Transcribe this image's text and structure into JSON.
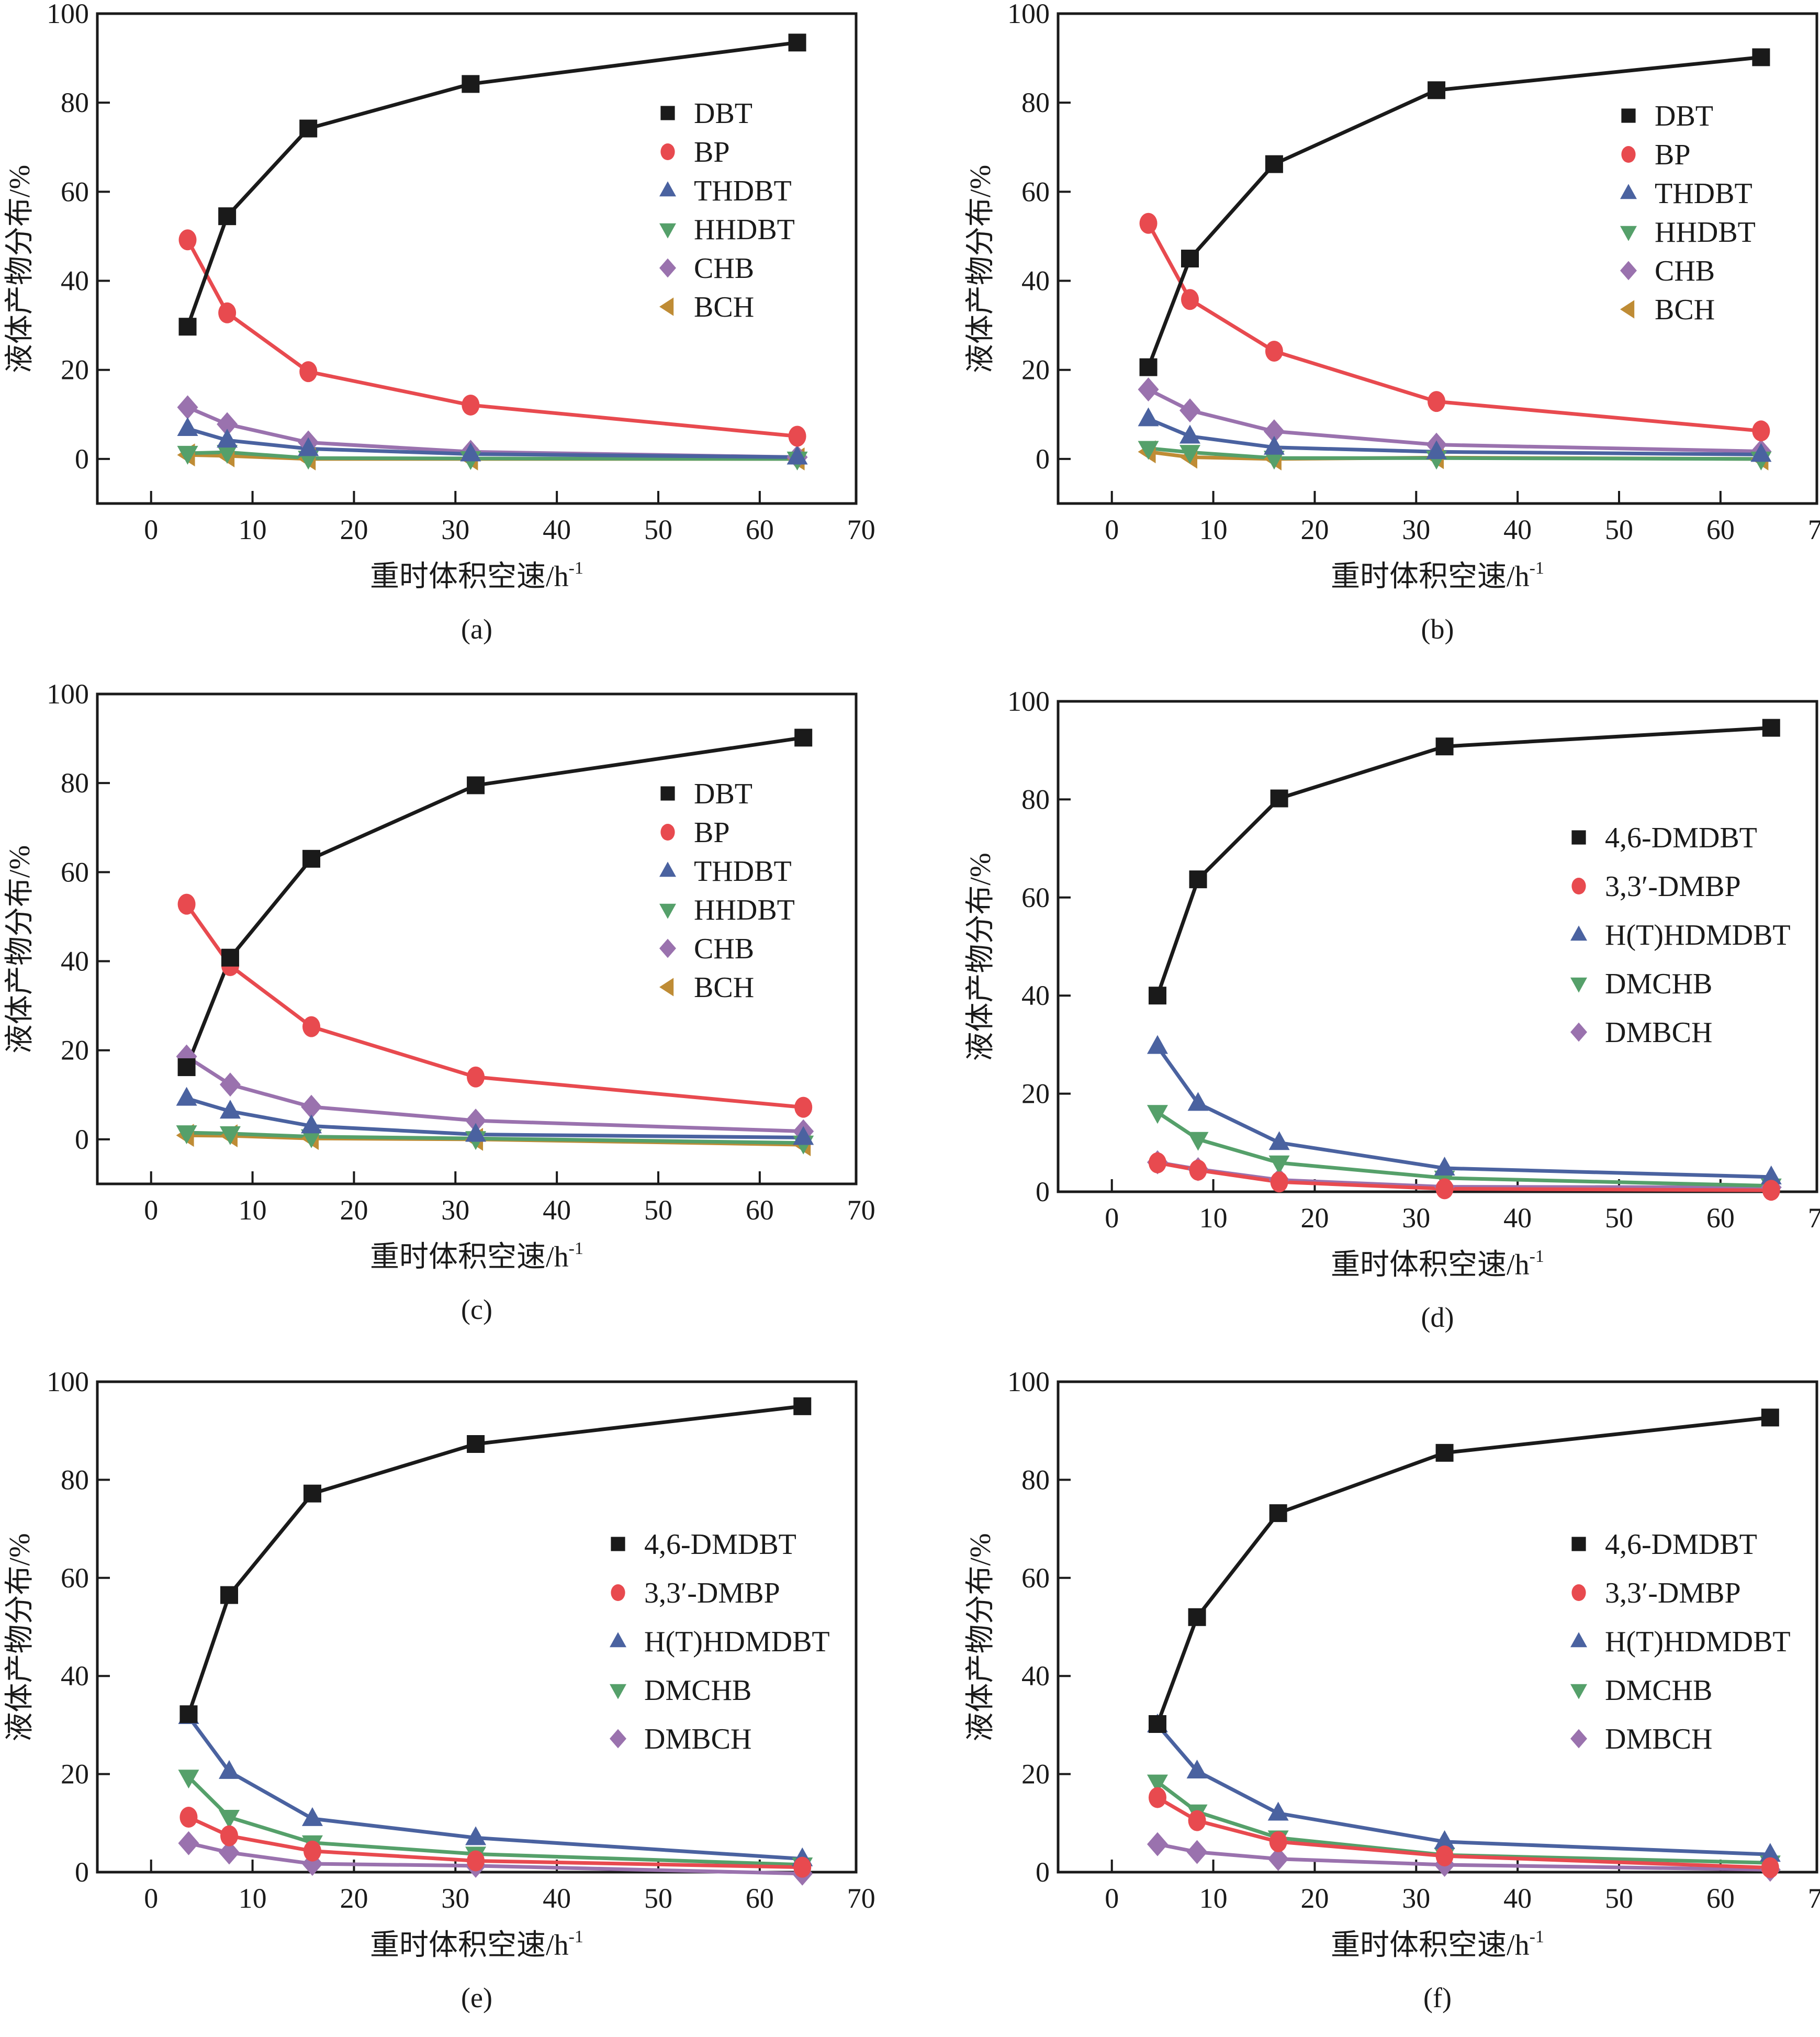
{
  "figure": {
    "panels": [
      "a",
      "b",
      "c",
      "d",
      "e",
      "f"
    ]
  },
  "chart_data": [
    {
      "id": "a",
      "type": "line",
      "panel_label": "(a)",
      "xlabel": "重时体积空速/h",
      "xlabel_sup": "-1",
      "ylabel": "液体产物分布/%",
      "xlim": [
        -5.3,
        69.5
      ],
      "ylim": [
        -10,
        100
      ],
      "xticks": [
        0,
        10,
        20,
        30,
        40,
        50,
        60,
        70
      ],
      "yticks": [
        0,
        20,
        40,
        60,
        80,
        100
      ],
      "legend_position": "right-upper",
      "x": [
        3.6,
        7.5,
        15.5,
        31.5,
        63.7
      ],
      "series": [
        {
          "name": "DBT",
          "marker": "square",
          "color": "#1a1a1a",
          "values": [
            29.7,
            54.5,
            74.2,
            84.2,
            93.5
          ]
        },
        {
          "name": "BP",
          "marker": "circle",
          "color": "#e84a4f",
          "values": [
            49.2,
            32.8,
            19.6,
            12.1,
            5.1
          ]
        },
        {
          "name": "THDBT",
          "marker": "triangle-up",
          "color": "#4a62a0",
          "values": [
            6.8,
            4.2,
            2.3,
            1.1,
            0.4
          ]
        },
        {
          "name": "HHDBT",
          "marker": "triangle-down",
          "color": "#55a06a",
          "values": [
            1.3,
            1.5,
            0.2,
            0.1,
            0.0
          ]
        },
        {
          "name": "CHB",
          "marker": "diamond",
          "color": "#9a72ae",
          "values": [
            11.6,
            7.8,
            3.7,
            1.6,
            0.4
          ]
        },
        {
          "name": "BCH",
          "marker": "triangle-left",
          "color": "#bf8c35",
          "values": [
            0.9,
            0.7,
            0.0,
            0.0,
            0.0
          ]
        }
      ]
    },
    {
      "id": "b",
      "type": "line",
      "panel_label": "(b)",
      "xlabel": "重时体积空速/h",
      "xlabel_sup": "-1",
      "ylabel": "液体产物分布/%",
      "xlim": [
        -5.3,
        69.5
      ],
      "ylim": [
        -10,
        100
      ],
      "xticks": [
        0,
        10,
        20,
        30,
        40,
        50,
        60,
        70
      ],
      "yticks": [
        0,
        20,
        40,
        60,
        80,
        100
      ],
      "legend_position": "right-upper",
      "x": [
        3.6,
        7.7,
        16.0,
        32.0,
        64.0
      ],
      "series": [
        {
          "name": "DBT",
          "marker": "square",
          "color": "#1a1a1a",
          "values": [
            20.6,
            45.0,
            66.2,
            82.8,
            90.2
          ]
        },
        {
          "name": "BP",
          "marker": "circle",
          "color": "#e84a4f",
          "values": [
            52.9,
            35.8,
            24.2,
            12.9,
            6.3
          ]
        },
        {
          "name": "THDBT",
          "marker": "triangle-up",
          "color": "#4a62a0",
          "values": [
            9.0,
            5.1,
            2.6,
            1.6,
            1.0
          ]
        },
        {
          "name": "HHDBT",
          "marker": "triangle-down",
          "color": "#55a06a",
          "values": [
            2.4,
            1.5,
            0.2,
            0.2,
            0.0
          ]
        },
        {
          "name": "CHB",
          "marker": "diamond",
          "color": "#9a72ae",
          "values": [
            15.6,
            10.9,
            6.2,
            3.2,
            1.7
          ]
        },
        {
          "name": "BCH",
          "marker": "triangle-left",
          "color": "#bf8c35",
          "values": [
            1.6,
            0.4,
            0.0,
            0.3,
            0.0
          ]
        }
      ]
    },
    {
      "id": "c",
      "type": "line",
      "panel_label": "(c)",
      "xlabel": "重时体积空速/h",
      "xlabel_sup": "-1",
      "ylabel": "液体产物分布/%",
      "xlim": [
        -5.3,
        69.5
      ],
      "ylim": [
        -10,
        100
      ],
      "xticks": [
        0,
        10,
        20,
        30,
        40,
        50,
        60,
        70
      ],
      "yticks": [
        0,
        20,
        40,
        60,
        80,
        100
      ],
      "legend_position": "right-upper",
      "x": [
        3.5,
        7.8,
        15.8,
        32.0,
        64.3
      ],
      "series": [
        {
          "name": "DBT",
          "marker": "square",
          "color": "#1a1a1a",
          "values": [
            16.2,
            40.8,
            63.0,
            79.5,
            90.2
          ]
        },
        {
          "name": "BP",
          "marker": "circle",
          "color": "#e84a4f",
          "values": [
            52.8,
            39.0,
            25.3,
            14.0,
            7.2
          ]
        },
        {
          "name": "THDBT",
          "marker": "triangle-up",
          "color": "#4a62a0",
          "values": [
            9.2,
            6.3,
            3.0,
            1.1,
            0.4
          ]
        },
        {
          "name": "HHDBT",
          "marker": "triangle-down",
          "color": "#55a06a",
          "values": [
            1.5,
            1.3,
            0.6,
            0.2,
            -0.8
          ]
        },
        {
          "name": "CHB",
          "marker": "diamond",
          "color": "#9a72ae",
          "values": [
            18.6,
            12.3,
            7.3,
            4.2,
            1.8
          ]
        },
        {
          "name": "BCH",
          "marker": "triangle-left",
          "color": "#bf8c35",
          "values": [
            0.9,
            0.8,
            0.2,
            0.0,
            -1.2
          ]
        }
      ]
    },
    {
      "id": "d",
      "type": "line",
      "panel_label": "(d)",
      "xlabel": "重时体积空速/h",
      "xlabel_sup": "-1",
      "ylabel": "液体产物分布/%",
      "xlim": [
        -5.3,
        69.5
      ],
      "ylim": [
        0,
        100
      ],
      "xticks": [
        0,
        10,
        20,
        30,
        40,
        50,
        60,
        70
      ],
      "yticks": [
        0,
        20,
        40,
        60,
        80,
        100
      ],
      "legend_position": "right-middle",
      "x": [
        4.5,
        8.5,
        16.5,
        32.8,
        65.0
      ],
      "series": [
        {
          "name": "4,6-DMDBT",
          "marker": "square",
          "color": "#1a1a1a",
          "values": [
            40.0,
            63.7,
            80.2,
            90.8,
            94.6
          ]
        },
        {
          "name": "3,3′-DMBP",
          "marker": "circle",
          "color": "#e84a4f",
          "values": [
            5.9,
            4.4,
            2.0,
            0.6,
            0.3
          ]
        },
        {
          "name": "H(T)HDMDBT",
          "marker": "triangle-up",
          "color": "#4a62a0",
          "values": [
            29.6,
            18.0,
            10.0,
            4.8,
            3.0
          ]
        },
        {
          "name": "DMCHB",
          "marker": "triangle-down",
          "color": "#55a06a",
          "values": [
            16.2,
            10.7,
            5.9,
            2.8,
            1.2
          ]
        },
        {
          "name": "DMBCH",
          "marker": "diamond",
          "color": "#9a72ae",
          "values": [
            6.0,
            4.6,
            2.4,
            1.0,
            0.9
          ]
        }
      ]
    },
    {
      "id": "e",
      "type": "line",
      "panel_label": "(e)",
      "xlabel": "重时体积空速/h",
      "xlabel_sup": "-1",
      "ylabel": "液体产物分布/%",
      "xlim": [
        -5.3,
        69.5
      ],
      "ylim": [
        0,
        100
      ],
      "xticks": [
        0,
        10,
        20,
        30,
        40,
        50,
        60,
        70
      ],
      "yticks": [
        0,
        20,
        40,
        60,
        80,
        100
      ],
      "legend_position": "right-middle",
      "x": [
        3.7,
        7.7,
        15.9,
        32.0,
        64.2
      ],
      "series": [
        {
          "name": "4,6-DMDBT",
          "marker": "square",
          "color": "#1a1a1a",
          "values": [
            32.2,
            56.5,
            77.2,
            87.3,
            95.0
          ]
        },
        {
          "name": "3,3′-DMBP",
          "marker": "circle",
          "color": "#e84a4f",
          "values": [
            11.2,
            7.4,
            4.3,
            2.3,
            1.0
          ]
        },
        {
          "name": "H(T)HDMDBT",
          "marker": "triangle-up",
          "color": "#4a62a0",
          "values": [
            31.7,
            20.5,
            10.9,
            7.0,
            2.7
          ]
        },
        {
          "name": "DMCHB",
          "marker": "triangle-down",
          "color": "#55a06a",
          "values": [
            19.4,
            11.2,
            6.0,
            3.7,
            1.5
          ]
        },
        {
          "name": "DMBCH",
          "marker": "diamond",
          "color": "#9a72ae",
          "values": [
            5.9,
            4.0,
            1.7,
            1.3,
            -0.3
          ]
        }
      ]
    },
    {
      "id": "f",
      "type": "line",
      "panel_label": "(f)",
      "xlabel": "重时体积空速/h",
      "xlabel_sup": "-1",
      "ylabel": "液体产物分布/%",
      "xlim": [
        -5.3,
        69.5
      ],
      "ylim": [
        0,
        100
      ],
      "xticks": [
        0,
        10,
        20,
        30,
        40,
        50,
        60,
        70
      ],
      "yticks": [
        0,
        20,
        40,
        60,
        80,
        100
      ],
      "legend_position": "right-middle",
      "x": [
        4.5,
        8.4,
        16.4,
        32.8,
        64.9
      ],
      "series": [
        {
          "name": "4,6-DMDBT",
          "marker": "square",
          "color": "#1a1a1a",
          "values": [
            30.2,
            52.0,
            73.2,
            85.5,
            92.7
          ]
        },
        {
          "name": "3,3′-DMBP",
          "marker": "circle",
          "color": "#e84a4f",
          "values": [
            15.2,
            10.5,
            6.2,
            3.3,
            0.9
          ]
        },
        {
          "name": "H(T)HDMDBT",
          "marker": "triangle-up",
          "color": "#4a62a0",
          "values": [
            30.0,
            20.6,
            12.0,
            6.2,
            3.6
          ]
        },
        {
          "name": "DMCHB",
          "marker": "triangle-down",
          "color": "#55a06a",
          "values": [
            18.4,
            12.3,
            7.0,
            3.5,
            1.9
          ]
        },
        {
          "name": "DMBCH",
          "marker": "diamond",
          "color": "#9a72ae",
          "values": [
            5.7,
            4.1,
            2.7,
            1.5,
            0.5
          ]
        }
      ]
    }
  ]
}
